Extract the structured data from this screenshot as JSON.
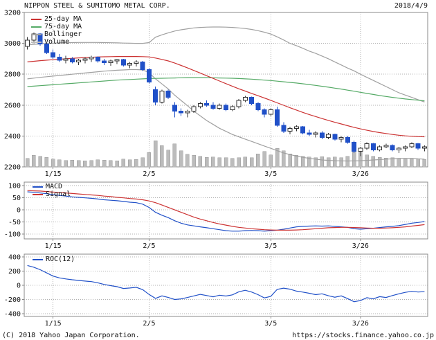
{
  "header": {
    "title": "NIPPON STEEL & SUMITOMO METAL CORP.",
    "date": "2018/4/9"
  },
  "footer": {
    "copyright": "(C) 2018 Yahoo Japan Corporation.",
    "url": "https://stocks.finance.yahoo.co.jp"
  },
  "colors": {
    "candle_up_fill": "#ffffff",
    "candle_up_stroke": "#333333",
    "candle_down": "#2050c8",
    "ma25": "#cc3333",
    "ma75": "#55aa66",
    "bollinger": "#a0a0a0",
    "volume": "#bcbcbc",
    "macd": "#2050c8",
    "signal": "#cc3333",
    "roc": "#2050c8",
    "grid": "#b0b0b0",
    "border": "#888888",
    "text": "#111111"
  },
  "chart_data": [
    {
      "type": "candlestick",
      "panel": "price",
      "legend": [
        {
          "label": "25-day MA",
          "color_key": "ma25"
        },
        {
          "label": "75-day MA",
          "color_key": "ma75"
        },
        {
          "label": "Bollinger",
          "color_key": "bollinger"
        },
        {
          "label": "Volume",
          "color_key": "volume"
        }
      ],
      "ylim": [
        2200,
        3200
      ],
      "y_ticks": [
        3200,
        3000,
        2800,
        2600,
        2400,
        2200
      ],
      "x_tick_labels": [
        "1/15",
        "2/5",
        "3/5",
        "3/26"
      ],
      "x_tick_indices": [
        4,
        19,
        38,
        52
      ],
      "dates": [
        "1/9",
        "1/10",
        "1/11",
        "1/12",
        "1/15",
        "1/16",
        "1/17",
        "1/18",
        "1/19",
        "1/22",
        "1/23",
        "1/24",
        "1/25",
        "1/26",
        "1/29",
        "1/30",
        "1/31",
        "2/1",
        "2/2",
        "2/5",
        "2/6",
        "2/7",
        "2/8",
        "2/9",
        "2/13",
        "2/14",
        "2/15",
        "2/16",
        "2/19",
        "2/20",
        "2/21",
        "2/22",
        "2/23",
        "2/26",
        "2/27",
        "2/28",
        "3/1",
        "3/2",
        "3/5",
        "3/6",
        "3/7",
        "3/8",
        "3/9",
        "3/12",
        "3/13",
        "3/14",
        "3/15",
        "3/16",
        "3/19",
        "3/20",
        "3/22",
        "3/23",
        "3/26",
        "3/27",
        "3/28",
        "3/29",
        "3/30",
        "4/2",
        "4/3",
        "4/4",
        "4/5",
        "4/6",
        "4/9"
      ],
      "open": [
        2980,
        3020,
        3060,
        2995,
        2940,
        2910,
        2890,
        2900,
        2880,
        2890,
        2900,
        2910,
        2885,
        2875,
        2885,
        2895,
        2860,
        2870,
        2880,
        2830,
        2700,
        2620,
        2690,
        2600,
        2560,
        2550,
        2560,
        2590,
        2610,
        2600,
        2580,
        2600,
        2570,
        2590,
        2630,
        2650,
        2610,
        2570,
        2540,
        2570,
        2470,
        2430,
        2450,
        2460,
        2420,
        2410,
        2420,
        2390,
        2410,
        2380,
        2390,
        2360,
        2300,
        2320,
        2350,
        2310,
        2330,
        2340,
        2310,
        2320,
        2330,
        2350,
        2320
      ],
      "high": [
        3040,
        3070,
        3065,
        3000,
        2960,
        2930,
        2920,
        2910,
        2900,
        2910,
        2920,
        2915,
        2900,
        2895,
        2900,
        2900,
        2880,
        2890,
        2885,
        2840,
        2720,
        2700,
        2700,
        2620,
        2580,
        2570,
        2600,
        2620,
        2630,
        2620,
        2610,
        2610,
        2600,
        2640,
        2660,
        2655,
        2620,
        2580,
        2580,
        2590,
        2490,
        2460,
        2470,
        2465,
        2440,
        2430,
        2430,
        2420,
        2415,
        2400,
        2400,
        2370,
        2330,
        2360,
        2355,
        2340,
        2350,
        2345,
        2330,
        2340,
        2360,
        2355,
        2340
      ],
      "low": [
        2960,
        3000,
        2985,
        2930,
        2900,
        2880,
        2870,
        2870,
        2860,
        2870,
        2880,
        2875,
        2860,
        2855,
        2865,
        2850,
        2840,
        2850,
        2820,
        2740,
        2600,
        2610,
        2640,
        2520,
        2530,
        2520,
        2550,
        2580,
        2590,
        2570,
        2570,
        2560,
        2560,
        2580,
        2620,
        2600,
        2560,
        2520,
        2530,
        2460,
        2420,
        2410,
        2430,
        2410,
        2400,
        2390,
        2380,
        2380,
        2370,
        2360,
        2350,
        2290,
        2270,
        2310,
        2300,
        2300,
        2320,
        2300,
        2290,
        2300,
        2320,
        2310,
        2300
      ],
      "close": [
        3020,
        3060,
        2995,
        2940,
        2910,
        2890,
        2900,
        2880,
        2890,
        2900,
        2910,
        2885,
        2875,
        2885,
        2895,
        2860,
        2870,
        2880,
        2830,
        2750,
        2620,
        2690,
        2650,
        2560,
        2550,
        2560,
        2590,
        2610,
        2600,
        2580,
        2600,
        2570,
        2590,
        2630,
        2650,
        2610,
        2570,
        2540,
        2570,
        2470,
        2430,
        2450,
        2460,
        2420,
        2410,
        2420,
        2390,
        2410,
        2380,
        2390,
        2360,
        2300,
        2320,
        2350,
        2310,
        2330,
        2340,
        2310,
        2320,
        2330,
        2350,
        2320,
        2330
      ],
      "volume": [
        3.1,
        4.2,
        3.8,
        3.5,
        2.9,
        2.6,
        2.4,
        2.5,
        2.3,
        2.2,
        2.4,
        2.6,
        2.5,
        2.3,
        2.2,
        2.8,
        2.6,
        2.7,
        3.4,
        5.2,
        9.6,
        7.8,
        6.1,
        8.4,
        5.9,
        4.6,
        4.2,
        3.8,
        3.5,
        3.6,
        3.3,
        3.4,
        3.1,
        3.3,
        3.6,
        3.4,
        4.8,
        5.6,
        4.4,
        6.8,
        5.9,
        4.7,
        4.2,
        3.9,
        3.6,
        3.4,
        3.7,
        3.3,
        3.6,
        3.4,
        3.9,
        6.2,
        5.4,
        4.3,
        3.8,
        3.5,
        3.2,
        3.4,
        3.1,
        2.9,
        2.8,
        3.0,
        2.7
      ],
      "overlays": {
        "ma25": [
          2880,
          2884,
          2888,
          2891,
          2894,
          2897,
          2900,
          2903,
          2906,
          2908,
          2910,
          2912,
          2913,
          2914,
          2915,
          2915,
          2915,
          2915,
          2914,
          2912,
          2905,
          2896,
          2886,
          2872,
          2857,
          2841,
          2824,
          2807,
          2790,
          2773,
          2756,
          2739,
          2722,
          2706,
          2691,
          2676,
          2661,
          2646,
          2631,
          2615,
          2599,
          2583,
          2568,
          2553,
          2539,
          2526,
          2513,
          2501,
          2489,
          2478,
          2467,
          2456,
          2446,
          2437,
          2429,
          2422,
          2416,
          2410,
          2405,
          2401,
          2398,
          2396,
          2395
        ],
        "ma75": [
          2720,
          2723,
          2726,
          2729,
          2732,
          2735,
          2738,
          2741,
          2744,
          2747,
          2750,
          2753,
          2756,
          2759,
          2762,
          2764,
          2766,
          2768,
          2770,
          2772,
          2773,
          2774,
          2775,
          2776,
          2777,
          2778,
          2778,
          2778,
          2778,
          2777,
          2776,
          2775,
          2774,
          2772,
          2770,
          2768,
          2765,
          2762,
          2759,
          2755,
          2751,
          2747,
          2743,
          2738,
          2733,
          2728,
          2722,
          2716,
          2710,
          2704,
          2697,
          2690,
          2683,
          2676,
          2669,
          2662,
          2656,
          2650,
          2645,
          2640,
          2636,
          2632,
          2628
        ],
        "bollinger_upper": [
          2990,
          2993,
          2996,
          2999,
          3001,
          3003,
          3004,
          3005,
          3006,
          3006,
          3006,
          3006,
          3005,
          3004,
          3003,
          3002,
          3001,
          3000,
          3000,
          3005,
          3040,
          3055,
          3068,
          3080,
          3088,
          3094,
          3100,
          3103,
          3105,
          3106,
          3106,
          3105,
          3103,
          3100,
          3096,
          3090,
          3082,
          3072,
          3060,
          3042,
          3022,
          3000,
          2985,
          2968,
          2950,
          2935,
          2918,
          2900,
          2880,
          2860,
          2840,
          2822,
          2800,
          2780,
          2760,
          2740,
          2720,
          2700,
          2680,
          2665,
          2650,
          2635,
          2620
        ],
        "bollinger_lower": [
          2770,
          2775,
          2780,
          2784,
          2788,
          2792,
          2796,
          2800,
          2804,
          2808,
          2812,
          2816,
          2820,
          2823,
          2826,
          2828,
          2830,
          2830,
          2828,
          2810,
          2770,
          2737,
          2704,
          2664,
          2630,
          2596,
          2560,
          2530,
          2500,
          2475,
          2450,
          2430,
          2410,
          2395,
          2380,
          2365,
          2350,
          2335,
          2320,
          2305,
          2290,
          2280,
          2270,
          2262,
          2255,
          2250,
          2245,
          2242,
          2240,
          2239,
          2238,
          2239,
          2240,
          2242,
          2245,
          2247,
          2250,
          2252,
          2255,
          2255,
          2255,
          2252,
          2250
        ]
      }
    },
    {
      "type": "line",
      "panel": "macd",
      "legend": [
        {
          "label": "MACD",
          "color_key": "macd"
        },
        {
          "label": "Signal",
          "color_key": "signal"
        }
      ],
      "ylim": [
        -120,
        115
      ],
      "y_ticks": [
        100,
        50,
        0,
        -50,
        -100
      ],
      "x_tick_labels": [
        "1/15",
        "2/5",
        "3/5",
        "3/26"
      ],
      "x_tick_indices": [
        4,
        19,
        38,
        52
      ],
      "series": [
        {
          "name": "MACD",
          "color_key": "macd",
          "values": [
            75,
            73,
            70,
            67,
            63,
            60,
            57,
            54,
            52,
            50,
            48,
            45,
            42,
            40,
            38,
            35,
            32,
            30,
            24,
            10,
            -10,
            -22,
            -32,
            -45,
            -55,
            -62,
            -66,
            -70,
            -74,
            -78,
            -82,
            -86,
            -88,
            -88,
            -86,
            -85,
            -86,
            -88,
            -86,
            -84,
            -80,
            -75,
            -70,
            -68,
            -67,
            -66,
            -67,
            -66,
            -68,
            -70,
            -72,
            -78,
            -80,
            -78,
            -76,
            -73,
            -70,
            -68,
            -65,
            -60,
            -55,
            -52,
            -48
          ]
        },
        {
          "name": "Signal",
          "color_key": "signal",
          "values": [
            80,
            79,
            78,
            76,
            74,
            72,
            70,
            68,
            66,
            64,
            62,
            60,
            57,
            55,
            52,
            50,
            47,
            45,
            42,
            37,
            30,
            20,
            10,
            0,
            -10,
            -20,
            -30,
            -38,
            -45,
            -52,
            -58,
            -63,
            -68,
            -72,
            -75,
            -78,
            -80,
            -82,
            -83,
            -84,
            -84,
            -84,
            -83,
            -82,
            -80,
            -78,
            -76,
            -74,
            -73,
            -72,
            -72,
            -73,
            -74,
            -75,
            -76,
            -76,
            -75,
            -74,
            -72,
            -70,
            -67,
            -64,
            -61
          ]
        }
      ]
    },
    {
      "type": "line",
      "panel": "roc",
      "legend": [
        {
          "label": "ROC(12)",
          "color_key": "roc"
        }
      ],
      "ylim": [
        -440,
        440
      ],
      "y_ticks": [
        400,
        200,
        0,
        -200,
        -400
      ],
      "x_tick_labels": [
        "1/15",
        "2/5",
        "3/5",
        "3/26"
      ],
      "x_tick_indices": [
        4,
        19,
        38,
        52
      ],
      "series": [
        {
          "name": "ROC(12)",
          "color_key": "roc",
          "values": [
            280,
            255,
            220,
            175,
            130,
            105,
            90,
            78,
            68,
            60,
            52,
            35,
            12,
            -5,
            -20,
            -45,
            -38,
            -28,
            -62,
            -130,
            -185,
            -150,
            -172,
            -200,
            -192,
            -172,
            -150,
            -128,
            -145,
            -162,
            -140,
            -152,
            -135,
            -92,
            -70,
            -95,
            -132,
            -178,
            -155,
            -58,
            -40,
            -55,
            -82,
            -96,
            -112,
            -132,
            -120,
            -148,
            -168,
            -150,
            -188,
            -232,
            -215,
            -175,
            -192,
            -160,
            -172,
            -145,
            -120,
            -100,
            -85,
            -95,
            -90
          ]
        }
      ]
    }
  ]
}
